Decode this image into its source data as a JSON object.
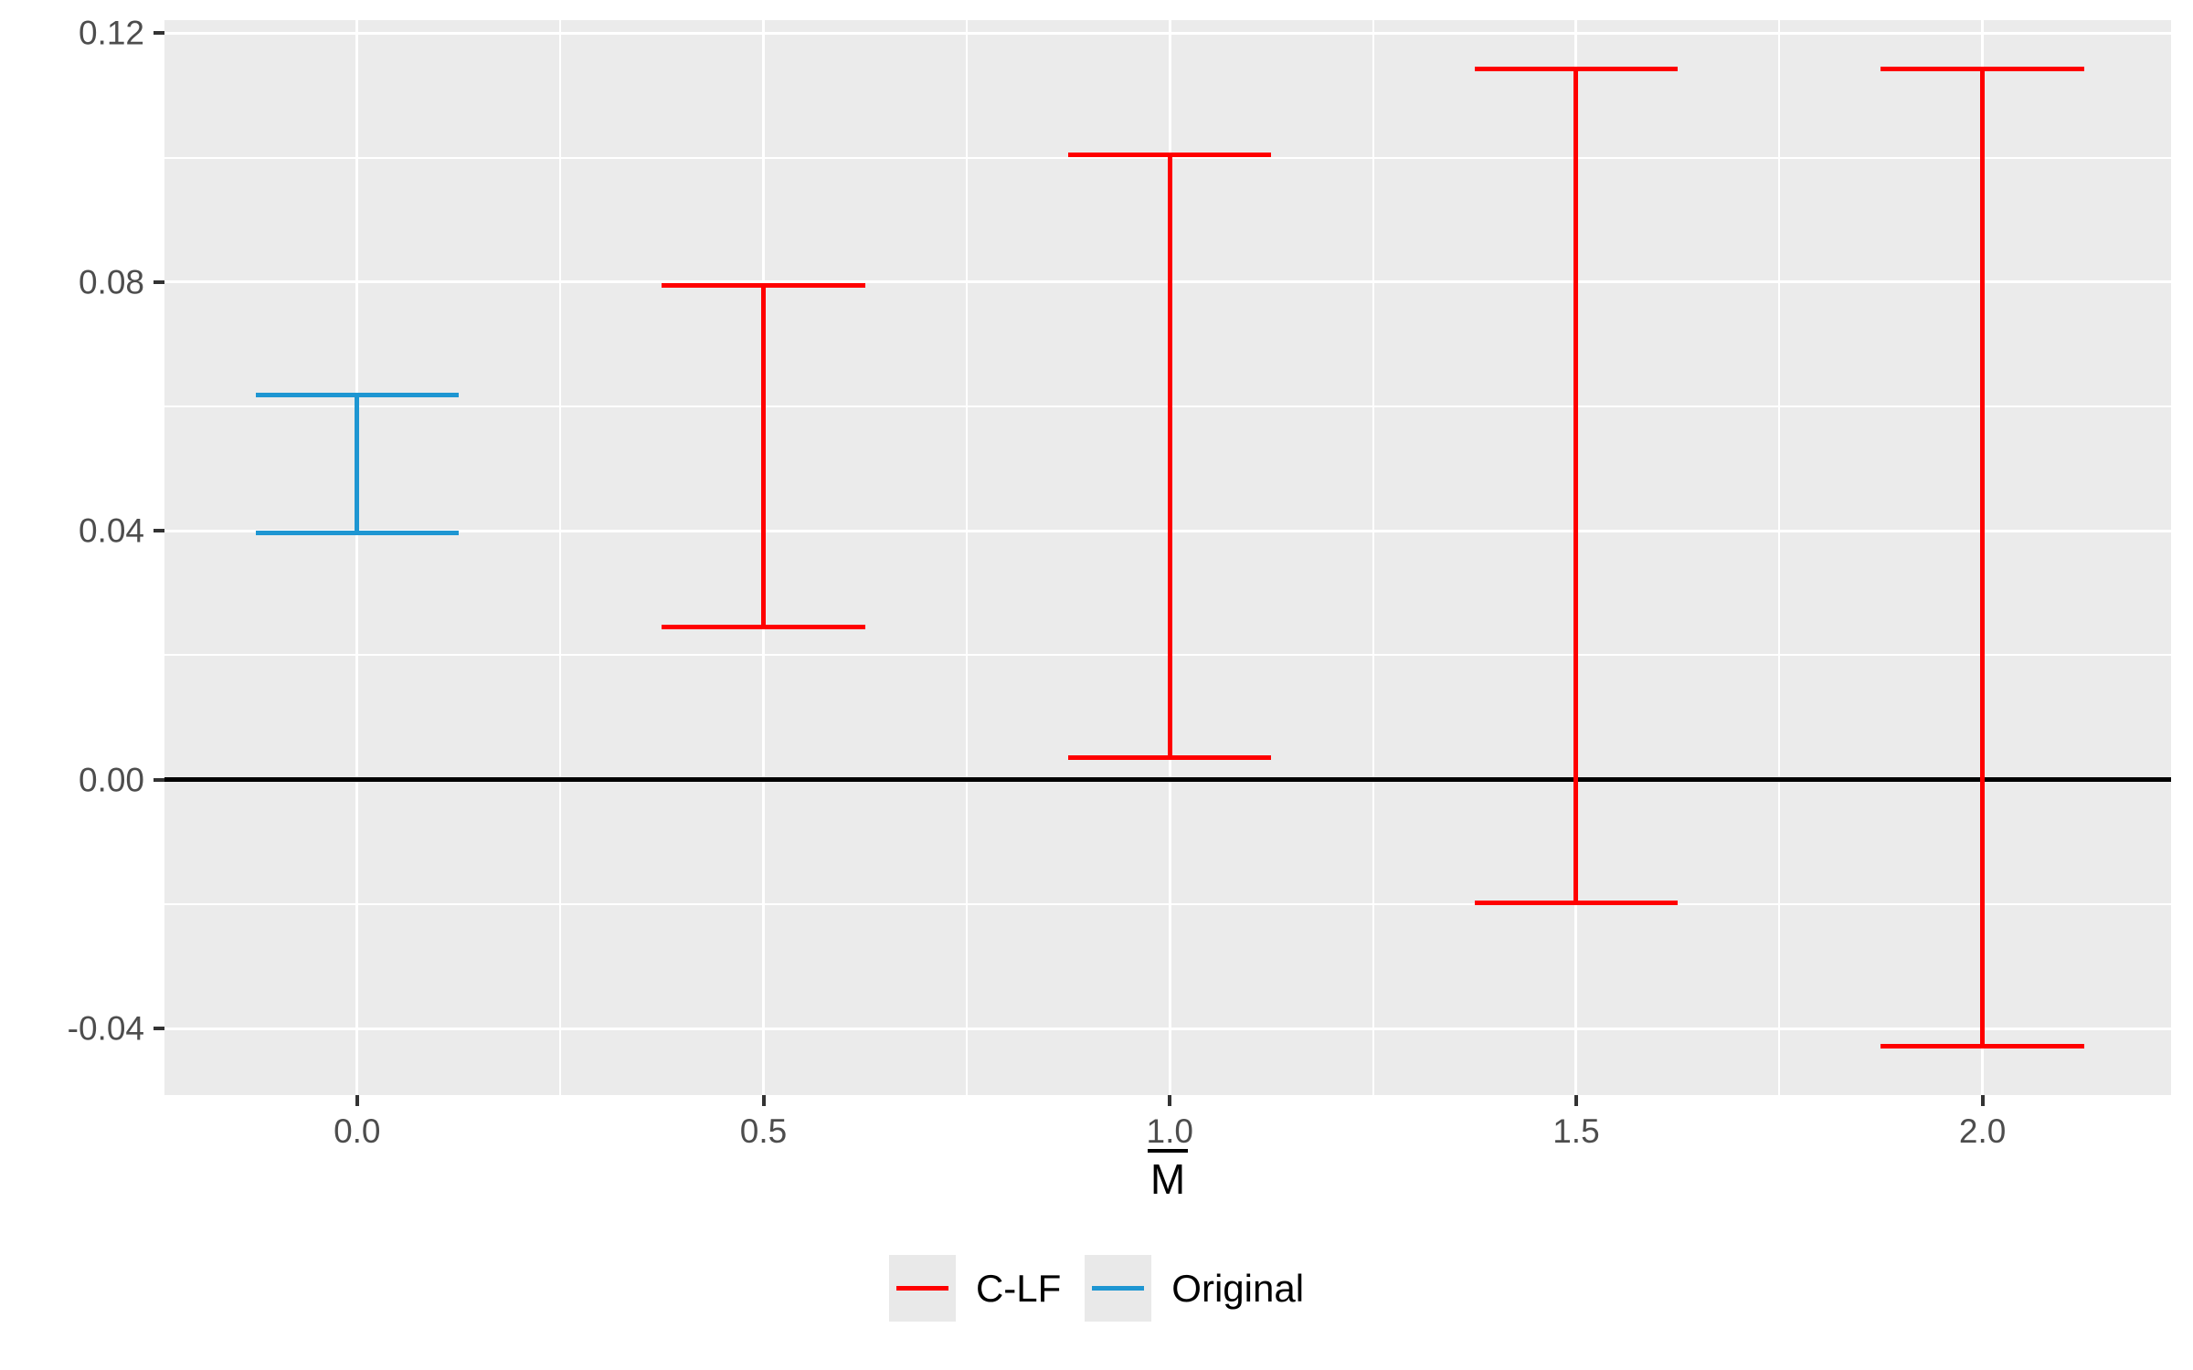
{
  "chart_data": {
    "type": "errorbar",
    "title": "",
    "xlabel": "M̄",
    "xlabel_base": "M",
    "ylabel": "",
    "xlim": [
      -0.237,
      2.232
    ],
    "ylim": [
      -0.0507,
      0.1221
    ],
    "x_ticks": [
      {
        "value": 0.0,
        "label": "0.0"
      },
      {
        "value": 0.5,
        "label": "0.5"
      },
      {
        "value": 1.0,
        "label": "1.0"
      },
      {
        "value": 1.5,
        "label": "1.5"
      },
      {
        "value": 2.0,
        "label": "2.0"
      }
    ],
    "y_ticks": [
      {
        "value": 0.12,
        "label": "0.12"
      },
      {
        "value": 0.08,
        "label": "0.08"
      },
      {
        "value": 0.04,
        "label": "0.04"
      },
      {
        "value": 0.0,
        "label": "0.00"
      },
      {
        "value": -0.04,
        "label": "-0.04"
      }
    ],
    "x_minor_gridlines": [
      0.25,
      0.75,
      1.25,
      1.75
    ],
    "y_minor_gridlines": [
      -0.02,
      0.02,
      0.06,
      0.1
    ],
    "reference_line_y": 0.0,
    "errorbar_cap_width": 0.25,
    "grid": true,
    "legend_position": "bottom",
    "panel_background": "#EBEBEB",
    "gridline_color": "#FFFFFF",
    "series": [
      {
        "name": "C-LF",
        "color": "#FF0000",
        "points": [
          {
            "x": 0.5,
            "ymin": 0.0245,
            "ymax": 0.0795
          },
          {
            "x": 1.0,
            "ymin": 0.0035,
            "ymax": 0.1004
          },
          {
            "x": 1.5,
            "ymin": -0.0198,
            "ymax": 0.1142
          },
          {
            "x": 2.0,
            "ymin": -0.0428,
            "ymax": 0.1142
          }
        ]
      },
      {
        "name": "Original",
        "color": "#1E96D2",
        "points": [
          {
            "x": 0.0,
            "ymin": 0.0396,
            "ymax": 0.0619
          }
        ]
      }
    ],
    "legend": {
      "entries": [
        {
          "label": "C-LF",
          "color": "#FF0000"
        },
        {
          "label": "Original",
          "color": "#1E96D2"
        }
      ]
    }
  }
}
